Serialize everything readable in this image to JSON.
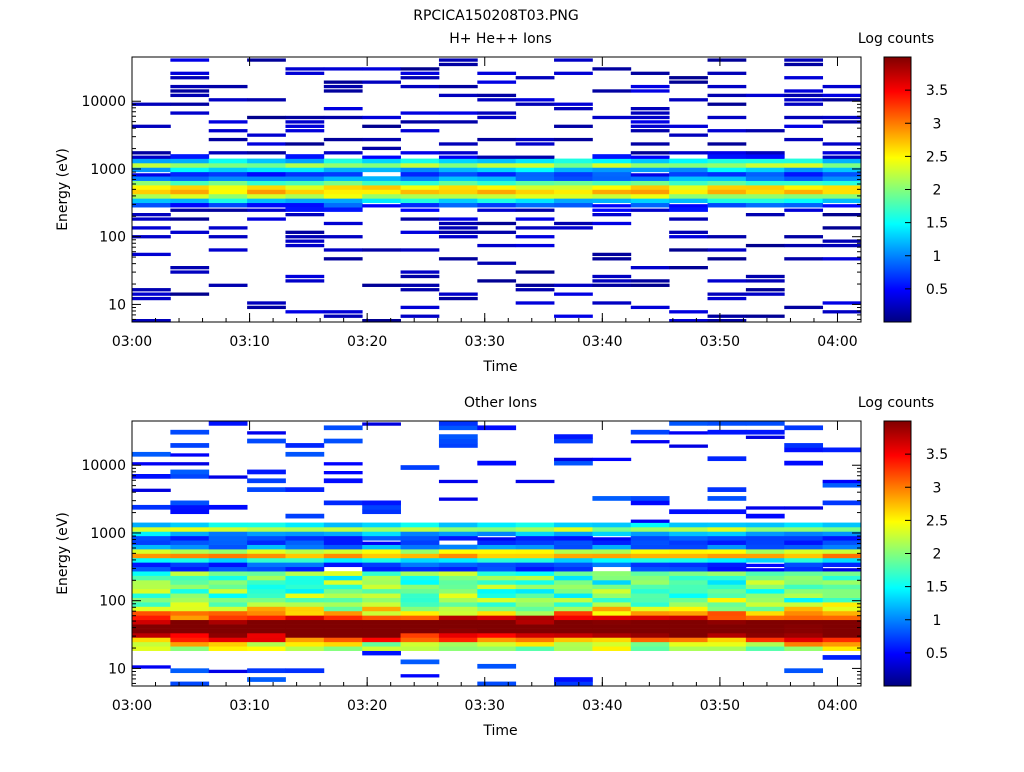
{
  "figure_title": "RPCICA150208T03.PNG",
  "colors": {
    "background": "#ffffff",
    "colormap": [
      "#000080",
      "#0000ff",
      "#00ffff",
      "#ffff00",
      "#ff0000",
      "#800000"
    ]
  },
  "chart_data": [
    {
      "type": "heatmap",
      "title": "H+ He++ Ions",
      "xlabel": "Time",
      "ylabel": "Energy (eV)",
      "yscale": "log",
      "ylim": [
        5.5,
        45000
      ],
      "xlim_minutes": [
        0,
        62
      ],
      "xticks": [
        {
          "t": 0,
          "label": "03:00"
        },
        {
          "t": 10,
          "label": "03:10"
        },
        {
          "t": 20,
          "label": "03:20"
        },
        {
          "t": 30,
          "label": "03:30"
        },
        {
          "t": 40,
          "label": "03:40"
        },
        {
          "t": 50,
          "label": "03:50"
        },
        {
          "t": 60,
          "label": "04:00"
        }
      ],
      "yticks": [
        {
          "v": 10,
          "label": "10"
        },
        {
          "v": 100,
          "label": "100"
        },
        {
          "v": 1000,
          "label": "1000"
        },
        {
          "v": 10000,
          "label": "10000"
        }
      ],
      "colorbar": {
        "label": "Log counts",
        "range": [
          0,
          4
        ],
        "ticks": [
          "0.5",
          "1",
          "1.5",
          "2",
          "2.5",
          "3",
          "3.5"
        ]
      },
      "time_bins": 19,
      "energy_bins": 60,
      "energy_min": 5.5,
      "energy_max": 45000,
      "spectrum": {
        "baseline": 0.15,
        "low_fill": 0.0,
        "low_cut": 0,
        "peaks": [
          {
            "center": 480,
            "amp": 2.6,
            "width_decades": 0.12
          },
          {
            "center": 1150,
            "amp": 2.0,
            "width_decades": 0.06
          }
        ],
        "sparse_above": 1600,
        "sparse_fraction": 0.55
      }
    },
    {
      "type": "heatmap",
      "title": "Other Ions",
      "xlabel": "Time",
      "ylabel": "Energy (eV)",
      "yscale": "log",
      "ylim": [
        5.5,
        45000
      ],
      "xlim_minutes": [
        0,
        62
      ],
      "xticks": [
        {
          "t": 0,
          "label": "03:00"
        },
        {
          "t": 10,
          "label": "03:10"
        },
        {
          "t": 20,
          "label": "03:20"
        },
        {
          "t": 30,
          "label": "03:30"
        },
        {
          "t": 40,
          "label": "03:40"
        },
        {
          "t": 50,
          "label": "03:50"
        },
        {
          "t": 60,
          "label": "04:00"
        }
      ],
      "yticks": [
        {
          "v": 10,
          "label": "10"
        },
        {
          "v": 100,
          "label": "100"
        },
        {
          "v": 1000,
          "label": "1000"
        },
        {
          "v": 10000,
          "label": "10000"
        }
      ],
      "colorbar": {
        "label": "Log counts",
        "range": [
          0,
          4
        ],
        "ticks": [
          "0.5",
          "1",
          "1.5",
          "2",
          "2.5",
          "3",
          "3.5"
        ]
      },
      "time_bins": 19,
      "energy_bins": 60,
      "energy_min": 5.5,
      "energy_max": 45000,
      "spectrum": {
        "baseline": 0.6,
        "low_fill": 1.4,
        "low_cut": 18,
        "peaks": [
          {
            "center": 40,
            "amp": 2.7,
            "width_decades": 0.14
          },
          {
            "center": 480,
            "amp": 2.3,
            "width_decades": 0.06
          },
          {
            "center": 1150,
            "amp": 1.6,
            "width_decades": 0.05
          }
        ],
        "sparse_above": 1500,
        "sparse_fraction": 0.85
      }
    }
  ]
}
